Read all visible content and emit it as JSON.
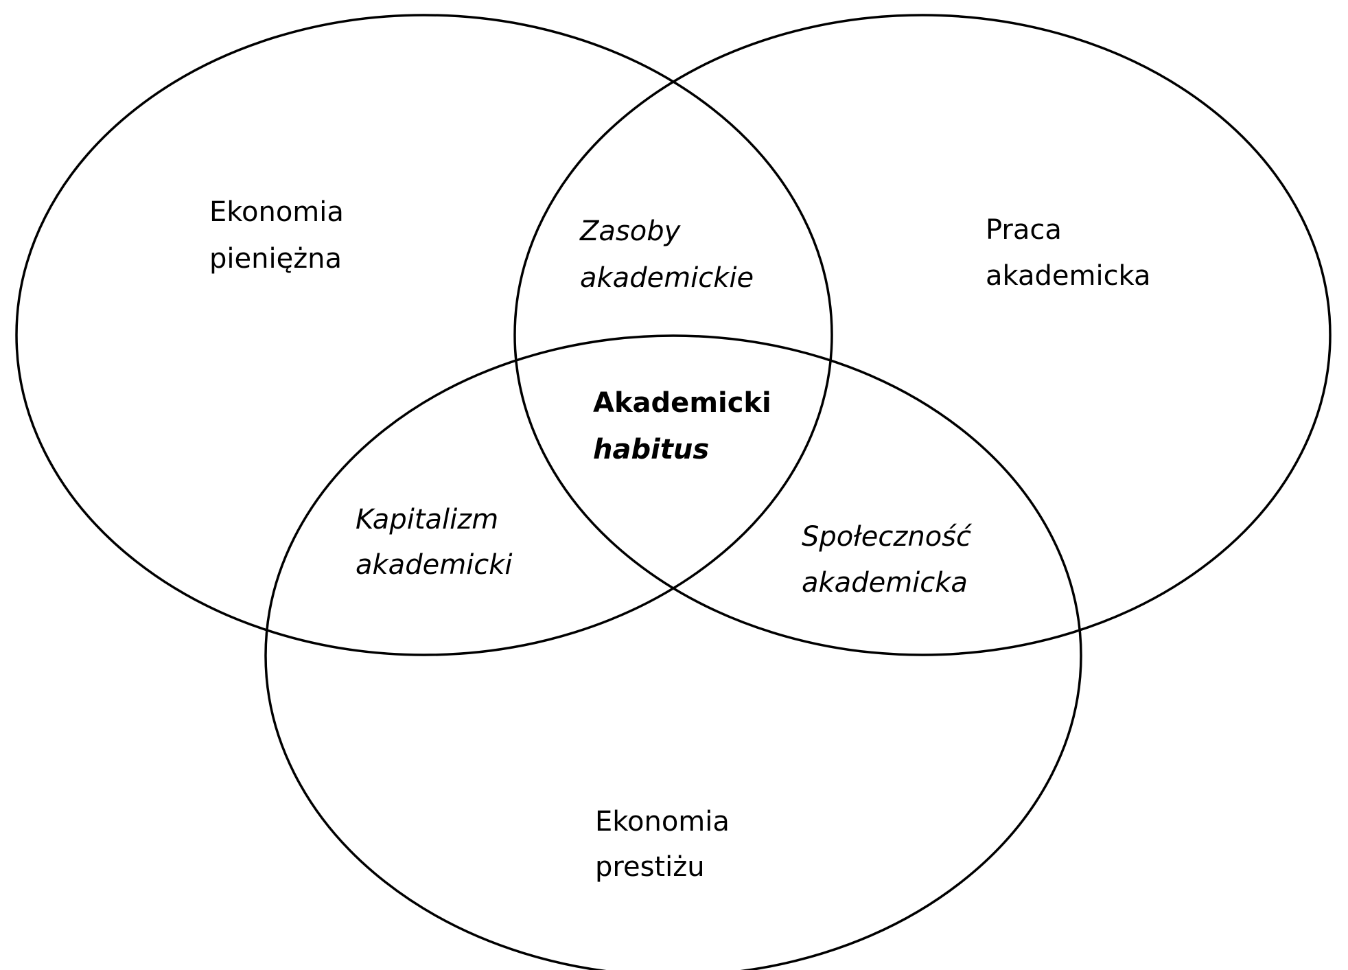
{
  "sets": [
    {
      "id": "monetary",
      "lines": [
        "Ekonomia",
        "pieniężna"
      ]
    },
    {
      "id": "work",
      "lines": [
        "Praca",
        "akademicka"
      ]
    },
    {
      "id": "prestige",
      "lines": [
        "Ekonomia",
        "prestiżu"
      ]
    }
  ],
  "intersections": {
    "monetary_work": {
      "lines": [
        "Zasoby",
        "akademickie"
      ]
    },
    "monetary_prestige": {
      "lines": [
        "Kapitalizm",
        "akademicki"
      ]
    },
    "work_prestige": {
      "lines": [
        "Społeczność",
        "akademicka"
      ]
    },
    "center": {
      "line1": "Akademicki",
      "line2": "habitus"
    }
  }
}
